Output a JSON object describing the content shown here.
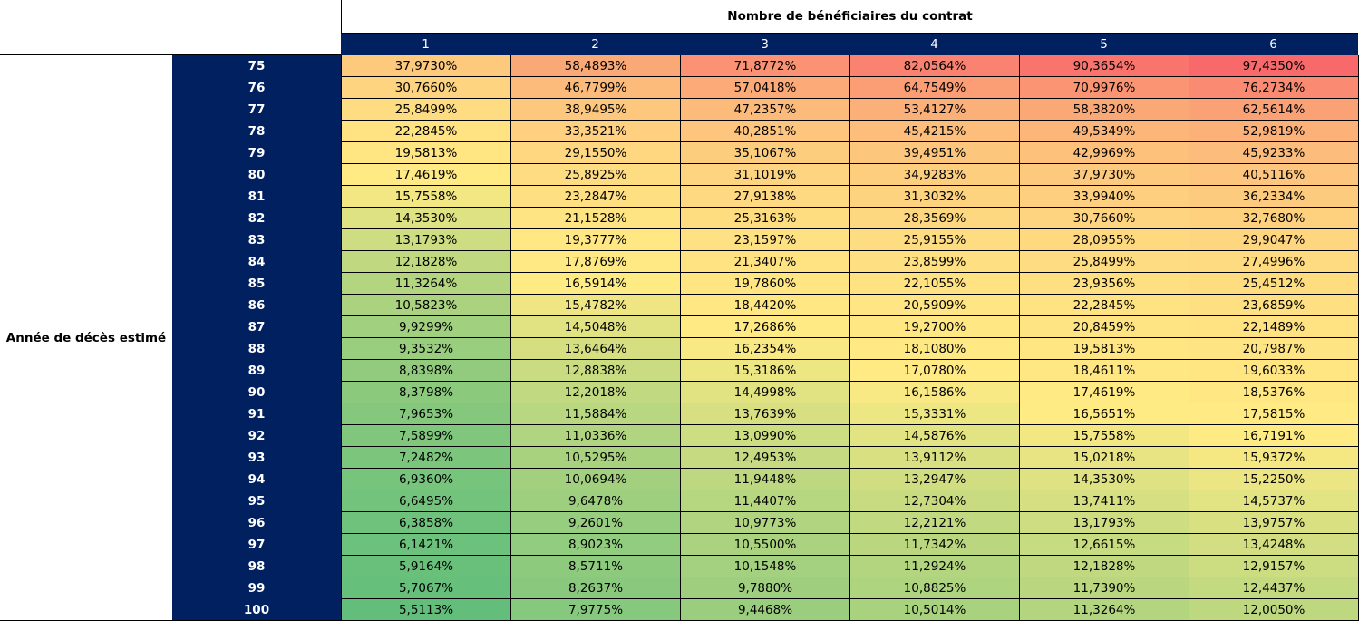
{
  "table": {
    "column_axis_title": "Nombre de bénéficiaires du contrat",
    "row_axis_title": "Année de décès estimé",
    "columns": [
      "1",
      "2",
      "3",
      "4",
      "5",
      "6"
    ],
    "rows": [
      {
        "year": "75",
        "values": [
          "37,9730%",
          "58,4893%",
          "71,8772%",
          "82,0564%",
          "90,3654%",
          "97,4350%"
        ]
      },
      {
        "year": "76",
        "values": [
          "30,7660%",
          "46,7799%",
          "57,0418%",
          "64,7549%",
          "70,9976%",
          "76,2734%"
        ]
      },
      {
        "year": "77",
        "values": [
          "25,8499%",
          "38,9495%",
          "47,2357%",
          "53,4127%",
          "58,3820%",
          "62,5614%"
        ]
      },
      {
        "year": "78",
        "values": [
          "22,2845%",
          "33,3521%",
          "40,2851%",
          "45,4215%",
          "49,5349%",
          "52,9819%"
        ]
      },
      {
        "year": "79",
        "values": [
          "19,5813%",
          "29,1550%",
          "35,1067%",
          "39,4951%",
          "42,9969%",
          "45,9233%"
        ]
      },
      {
        "year": "80",
        "values": [
          "17,4619%",
          "25,8925%",
          "31,1019%",
          "34,9283%",
          "37,9730%",
          "40,5116%"
        ]
      },
      {
        "year": "81",
        "values": [
          "15,7558%",
          "23,2847%",
          "27,9138%",
          "31,3032%",
          "33,9940%",
          "36,2334%"
        ]
      },
      {
        "year": "82",
        "values": [
          "14,3530%",
          "21,1528%",
          "25,3163%",
          "28,3569%",
          "30,7660%",
          "32,7680%"
        ]
      },
      {
        "year": "83",
        "values": [
          "13,1793%",
          "19,3777%",
          "23,1597%",
          "25,9155%",
          "28,0955%",
          "29,9047%"
        ]
      },
      {
        "year": "84",
        "values": [
          "12,1828%",
          "17,8769%",
          "21,3407%",
          "23,8599%",
          "25,8499%",
          "27,4996%"
        ]
      },
      {
        "year": "85",
        "values": [
          "11,3264%",
          "16,5914%",
          "19,7860%",
          "22,1055%",
          "23,9356%",
          "25,4512%"
        ]
      },
      {
        "year": "86",
        "values": [
          "10,5823%",
          "15,4782%",
          "18,4420%",
          "20,5909%",
          "22,2845%",
          "23,6859%"
        ]
      },
      {
        "year": "87",
        "values": [
          "9,9299%",
          "14,5048%",
          "17,2686%",
          "19,2700%",
          "20,8459%",
          "22,1489%"
        ]
      },
      {
        "year": "88",
        "values": [
          "9,3532%",
          "13,6464%",
          "16,2354%",
          "18,1080%",
          "19,5813%",
          "20,7987%"
        ]
      },
      {
        "year": "89",
        "values": [
          "8,8398%",
          "12,8838%",
          "15,3186%",
          "17,0780%",
          "18,4611%",
          "19,6033%"
        ]
      },
      {
        "year": "90",
        "values": [
          "8,3798%",
          "12,2018%",
          "14,4998%",
          "16,1586%",
          "17,4619%",
          "18,5376%"
        ]
      },
      {
        "year": "91",
        "values": [
          "7,9653%",
          "11,5884%",
          "13,7639%",
          "15,3331%",
          "16,5651%",
          "17,5815%"
        ]
      },
      {
        "year": "92",
        "values": [
          "7,5899%",
          "11,0336%",
          "13,0990%",
          "14,5876%",
          "15,7558%",
          "16,7191%"
        ]
      },
      {
        "year": "93",
        "values": [
          "7,2482%",
          "10,5295%",
          "12,4953%",
          "13,9112%",
          "15,0218%",
          "15,9372%"
        ]
      },
      {
        "year": "94",
        "values": [
          "6,9360%",
          "10,0694%",
          "11,9448%",
          "13,2947%",
          "14,3530%",
          "15,2250%"
        ]
      },
      {
        "year": "95",
        "values": [
          "6,6495%",
          "9,6478%",
          "11,4407%",
          "12,7304%",
          "13,7411%",
          "14,5737%"
        ]
      },
      {
        "year": "96",
        "values": [
          "6,3858%",
          "9,2601%",
          "10,9773%",
          "12,2121%",
          "13,1793%",
          "13,9757%"
        ]
      },
      {
        "year": "97",
        "values": [
          "6,1421%",
          "8,9023%",
          "10,5500%",
          "11,7342%",
          "12,6615%",
          "13,4248%"
        ]
      },
      {
        "year": "98",
        "values": [
          "5,9164%",
          "8,5711%",
          "10,1548%",
          "11,2924%",
          "12,1828%",
          "12,9157%"
        ]
      },
      {
        "year": "99",
        "values": [
          "5,7067%",
          "8,2637%",
          "9,7880%",
          "10,8825%",
          "11,7390%",
          "12,4437%"
        ]
      },
      {
        "year": "100",
        "values": [
          "5,5113%",
          "7,9775%",
          "9,4468%",
          "10,5014%",
          "11,3264%",
          "12,0050%"
        ]
      }
    ]
  },
  "colors": {
    "header_fill": "#002060",
    "header_text": "#ffffff",
    "scale_low": "#63be7b",
    "scale_mid": "#ffeb84",
    "scale_high": "#f8696b"
  }
}
